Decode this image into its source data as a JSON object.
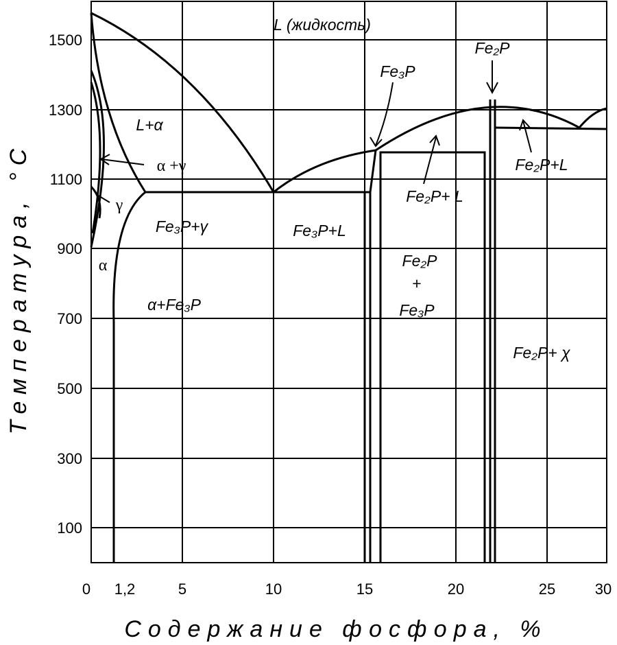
{
  "axes": {
    "y_title": "Температура, °C",
    "x_title": "Содержание фосфора, %",
    "y_ticks": [
      "1500",
      "1300",
      "1100",
      "900",
      "700",
      "500",
      "300",
      "100"
    ],
    "x_ticks": [
      "0",
      "1,2",
      "5",
      "10",
      "15",
      "20",
      "25",
      "30"
    ]
  },
  "regions": {
    "liquid": "L (жидкость)",
    "l_alpha": "L+α",
    "alpha_gamma": "α +γ",
    "gamma": "γ",
    "alpha": "α",
    "fe3p_gamma": "Fe₃P+γ",
    "alpha_fe3p": "α+Fe₃P",
    "fe3p_l": "Fe₃P+L",
    "fe3p_top": "Fe₃P",
    "fe2p_top": "Fe₂P",
    "fe2p_l_mid": "Fe₂P+ L",
    "fe2p_l_right": "Fe₂P+L",
    "fe2p_line1": "Fe₂P",
    "fe2p_plus": "+",
    "fe2p_line3": "Fe₃P",
    "fe2p_chi": "Fe₂P+ χ"
  }
}
